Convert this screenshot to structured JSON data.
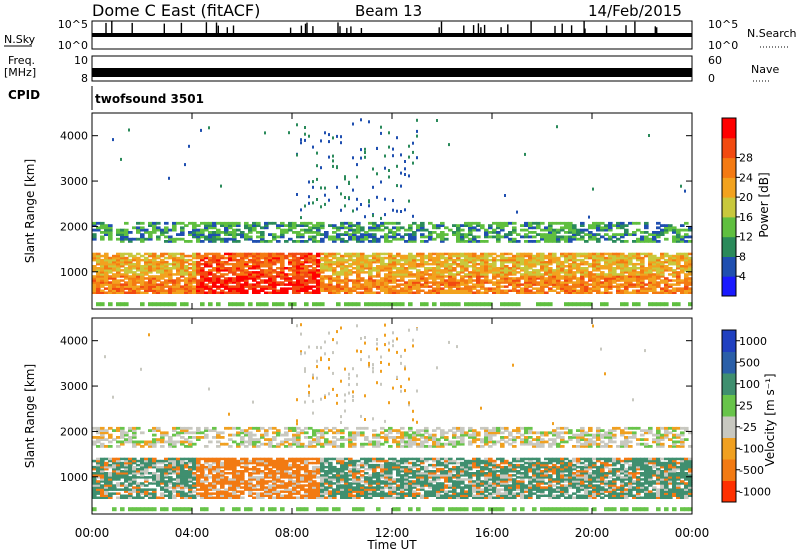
{
  "header": {
    "site": "Dome C East (fitACF)",
    "beam": "Beam 13",
    "date": "14/Feb/2015"
  },
  "left_labels": {
    "nsky": "N.Sky",
    "freq_line1": "Freq.",
    "freq_line2": "[MHz]",
    "cpid": "CPID"
  },
  "right_labels": {
    "nsearch": "N.Search",
    "nave": "Nave"
  },
  "noise_ticks": {
    "hi": "10^5",
    "lo": "10^0"
  },
  "freq_ticks": {
    "hi": "10",
    "lo": "8"
  },
  "nave_ticks": {
    "hi": "60",
    "lo": "0"
  },
  "cpid_text": "twofsound 3501",
  "colors": {
    "power": [
      "#1a1aff",
      "#1f4fb0",
      "#2a8a5a",
      "#5fbf3f",
      "#c8c83c",
      "#f2a21e",
      "#f47a12",
      "#f24a10",
      "#ff0000"
    ],
    "velocity": [
      "#2040c0",
      "#2a5fa8",
      "#3f8f6f",
      "#68c44a",
      "#c8c8c0",
      "#f0a020",
      "#f27a12",
      "#ff3000"
    ]
  },
  "chart_data": [
    {
      "type": "heatmap",
      "panel": "power",
      "ylabel": "Slant Range [km]",
      "yticks": [
        "1000",
        "2000",
        "3000",
        "4000"
      ],
      "ylim": [
        180,
        4500
      ],
      "xlim": [
        0,
        24
      ],
      "colorbar_label": "Power [dB]",
      "colorbar_ticks": [
        "4",
        "8",
        "12",
        "16",
        "20",
        "24",
        "28"
      ],
      "clim": [
        0,
        32
      ]
    },
    {
      "type": "heatmap",
      "panel": "velocity",
      "ylabel": "Slant Range [km]",
      "yticks": [
        "1000",
        "2000",
        "3000",
        "4000"
      ],
      "ylim": [
        180,
        4500
      ],
      "xlim": [
        0,
        24
      ],
      "colorbar_label": "Velocity [m s⁻¹]",
      "colorbar_ticks": [
        "1000",
        "500",
        "100",
        "25",
        "-25",
        "-100",
        "-500",
        "-1000"
      ]
    }
  ],
  "x_axis": {
    "ticks": [
      "00:00",
      "04:00",
      "08:00",
      "12:00",
      "16:00",
      "20:00",
      "00:00"
    ],
    "label": "Time UT"
  }
}
